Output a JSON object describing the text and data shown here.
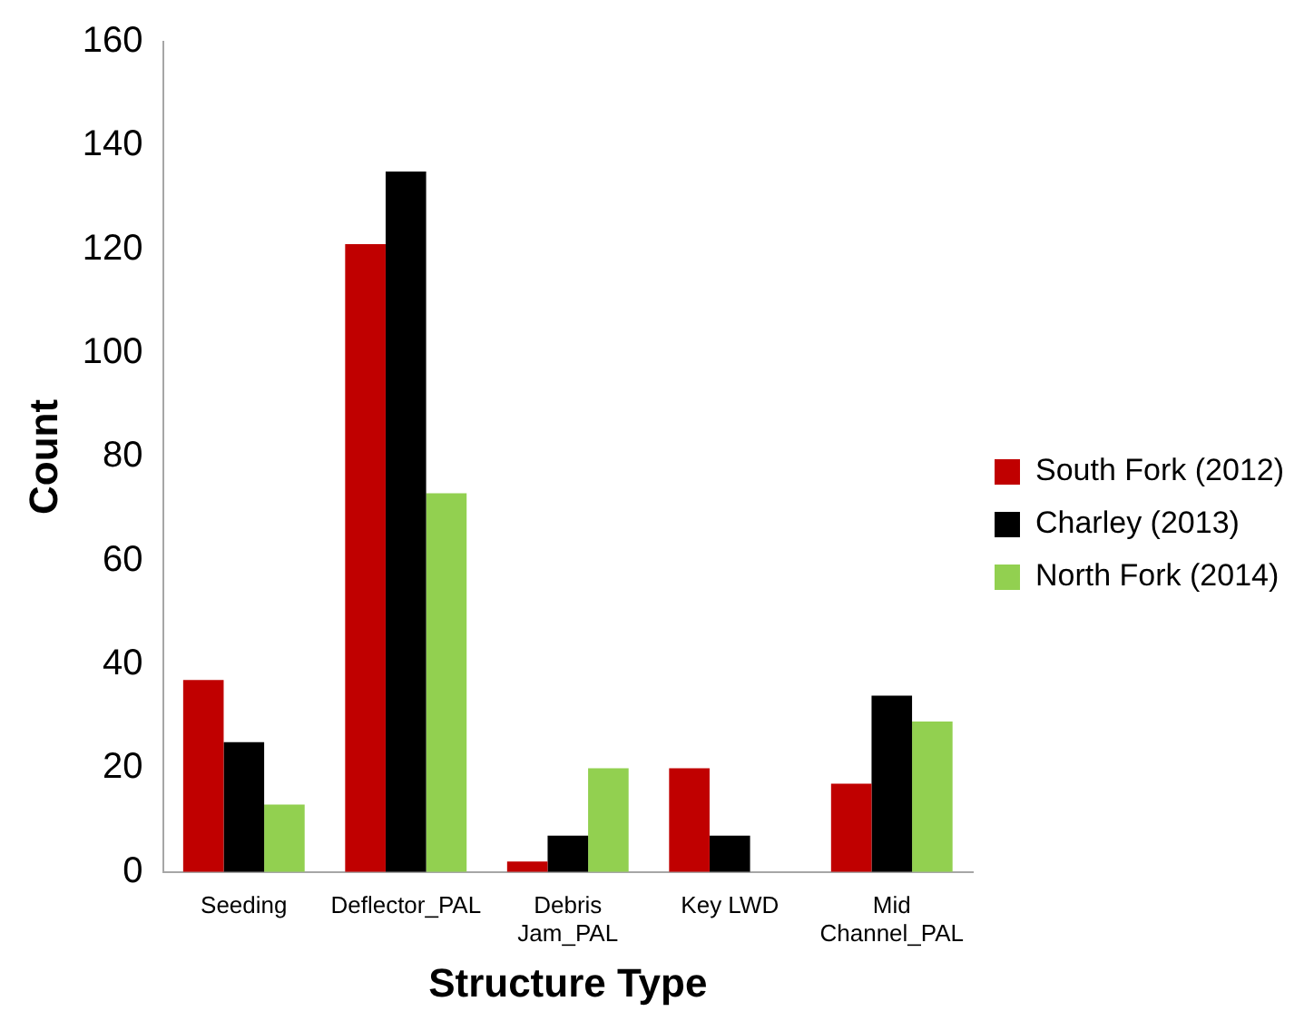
{
  "chart_data": {
    "type": "bar",
    "xlabel": "Structure Type",
    "ylabel": "Count",
    "categories": [
      "Seeding",
      "Deflector_PAL",
      "Debris\nJam_PAL",
      "Key LWD",
      "Mid\nChannel_PAL"
    ],
    "series": [
      {
        "name": "South Fork (2012)",
        "color": "#c00000",
        "values": [
          37,
          121,
          2,
          20,
          17
        ]
      },
      {
        "name": "Charley (2013)",
        "color": "#000000",
        "values": [
          25,
          135,
          7,
          7,
          34
        ]
      },
      {
        "name": "North Fork (2014)",
        "color": "#92d050",
        "values": [
          13,
          73,
          20,
          0,
          29
        ]
      }
    ],
    "ylim": [
      0,
      160
    ],
    "yticks": [
      0,
      20,
      40,
      60,
      80,
      100,
      120,
      140,
      160
    ],
    "grid": false,
    "legend": "right"
  }
}
